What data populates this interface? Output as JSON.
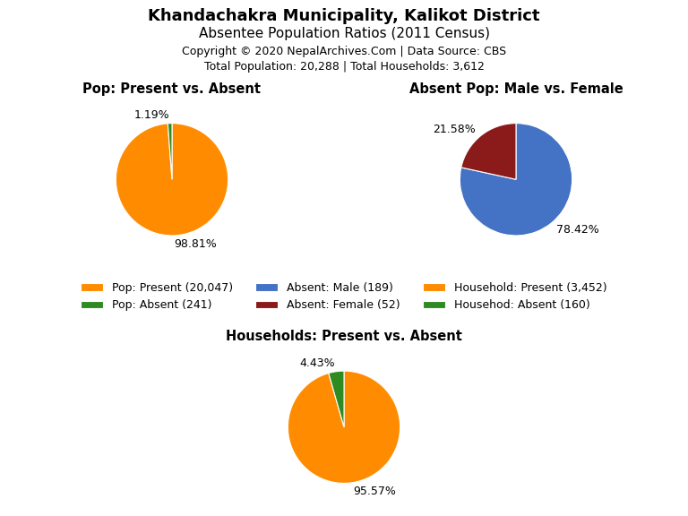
{
  "title": "Khandachakra Municipality, Kalikot District",
  "subtitle": "Absentee Population Ratios (2011 Census)",
  "annotations": [
    "Copyright © 2020 NepalArchives.Com | Data Source: CBS",
    "Total Population: 20,288 | Total Households: 3,612"
  ],
  "legend": "center",
  "chart_data": [
    {
      "type": "pie",
      "title": "Pop: Present vs. Absent",
      "categories": [
        "Pop: Present (20,047)",
        "Pop: Absent (241)"
      ],
      "values": [
        98.81,
        1.19
      ],
      "value_labels": [
        "98.81%",
        "1.19%"
      ],
      "colors": [
        "#FF8C00",
        "#2E8B22"
      ],
      "data_labels": true
    },
    {
      "type": "pie",
      "title": "Absent Pop: Male vs. Female",
      "categories": [
        "Absent: Male (189)",
        "Absent: Female (52)"
      ],
      "values": [
        78.42,
        21.58
      ],
      "value_labels": [
        "78.42%",
        "21.58%"
      ],
      "colors": [
        "#4472C4",
        "#8B1A1A"
      ],
      "data_labels": true
    },
    {
      "type": "pie",
      "title": "Households: Present vs. Absent",
      "categories": [
        "Household: Present (3,452)",
        "Househod: Absent (160)"
      ],
      "values": [
        95.57,
        4.43
      ],
      "value_labels": [
        "95.57%",
        "4.43%"
      ],
      "colors": [
        "#FF8C00",
        "#2E8B22"
      ],
      "data_labels": true
    }
  ]
}
